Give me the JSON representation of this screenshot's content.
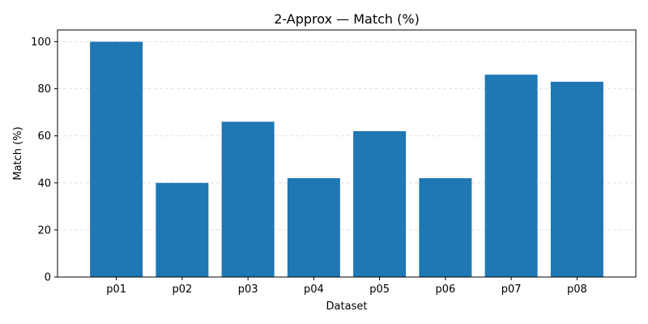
{
  "chart_data": {
    "type": "bar",
    "title": "2-Approx — Match (%)",
    "xlabel": "Dataset",
    "ylabel": "Match (%)",
    "categories": [
      "p01",
      "p02",
      "p03",
      "p04",
      "p05",
      "p06",
      "p07",
      "p08"
    ],
    "values": [
      100,
      40,
      66,
      42,
      62,
      42,
      86,
      83
    ],
    "ylim": [
      0,
      105
    ],
    "yticks": [
      0,
      20,
      40,
      60,
      80,
      100
    ],
    "grid": "y-dashed",
    "bar_color": "#1f77b4"
  }
}
